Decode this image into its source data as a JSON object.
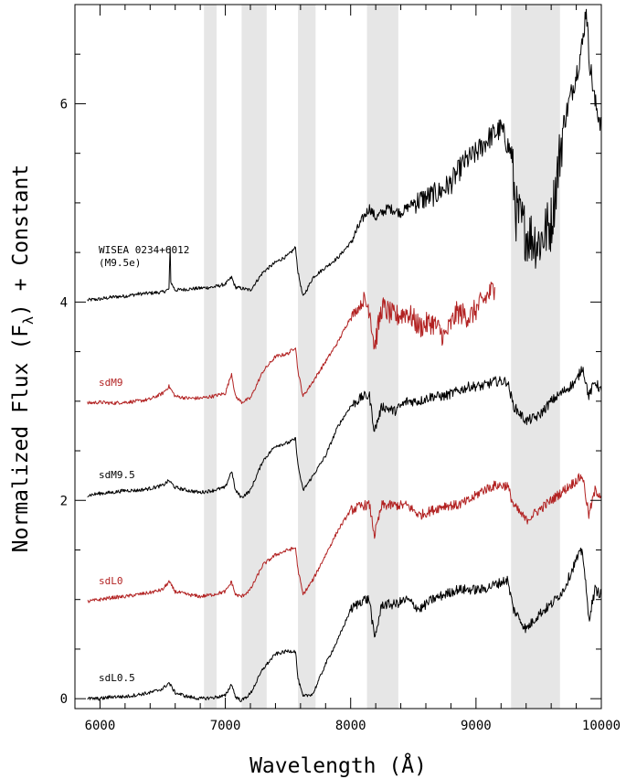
{
  "chart_data": {
    "type": "line",
    "title": "",
    "xlabel": "Wavelength (Å)",
    "ylabel": "Normalized Flux (F",
    "ylabel_subscript": "λ",
    "ylabel_suffix": ") + Constant",
    "xlim": [
      5800,
      10000
    ],
    "ylim": [
      -0.1,
      7.0
    ],
    "x_ticks": [
      6000,
      7000,
      8000,
      9000,
      10000
    ],
    "y_ticks": [
      0,
      2,
      4,
      6
    ],
    "x_tick_labels": [
      "6000",
      "7000",
      "8000",
      "9000",
      "10000"
    ],
    "y_tick_labels": [
      "0",
      "2",
      "4",
      "6"
    ],
    "grid": false,
    "telluric_bands": [
      [
        6830,
        6930
      ],
      [
        7130,
        7330
      ],
      [
        7580,
        7720
      ],
      [
        8130,
        8380
      ],
      [
        9280,
        9670
      ]
    ],
    "colors": {
      "black_series": "#000000",
      "red_series": "#b22222",
      "telluric_band": "#e6e6e6"
    },
    "series": [
      {
        "name": "WISEA 0234+6012",
        "note": "(M9.5e)",
        "color": "#000000",
        "points": [
          [
            5900,
            4.02
          ],
          [
            6000,
            4.03
          ],
          [
            6100,
            4.05
          ],
          [
            6200,
            4.06
          ],
          [
            6300,
            4.08
          ],
          [
            6400,
            4.09
          ],
          [
            6500,
            4.1
          ],
          [
            6550,
            4.13
          ],
          [
            6560,
            4.55
          ],
          [
            6565,
            4.2
          ],
          [
            6600,
            4.12
          ],
          [
            6700,
            4.13
          ],
          [
            6800,
            4.14
          ],
          [
            6900,
            4.15
          ],
          [
            7000,
            4.18
          ],
          [
            7050,
            4.25
          ],
          [
            7080,
            4.15
          ],
          [
            7200,
            4.12
          ],
          [
            7300,
            4.3
          ],
          [
            7400,
            4.4
          ],
          [
            7500,
            4.47
          ],
          [
            7560,
            4.55
          ],
          [
            7580,
            4.3
          ],
          [
            7620,
            4.05
          ],
          [
            7700,
            4.25
          ],
          [
            7800,
            4.35
          ],
          [
            7900,
            4.45
          ],
          [
            8000,
            4.6
          ],
          [
            8100,
            4.85
          ],
          [
            8150,
            4.95
          ],
          [
            8200,
            4.85
          ],
          [
            8300,
            4.95
          ],
          [
            8400,
            4.9
          ],
          [
            8500,
            5.0
          ],
          [
            8600,
            5.05
          ],
          [
            8700,
            5.1
          ],
          [
            8800,
            5.2
          ],
          [
            8900,
            5.4
          ],
          [
            9000,
            5.5
          ],
          [
            9100,
            5.65
          ],
          [
            9200,
            5.75
          ],
          [
            9280,
            5.5
          ],
          [
            9320,
            4.9
          ],
          [
            9400,
            4.7
          ],
          [
            9500,
            4.6
          ],
          [
            9600,
            4.8
          ],
          [
            9670,
            5.5
          ],
          [
            9700,
            5.8
          ],
          [
            9800,
            6.3
          ],
          [
            9850,
            6.6
          ],
          [
            9880,
            7.0
          ],
          [
            9900,
            6.5
          ],
          [
            9950,
            6.0
          ],
          [
            10000,
            5.8
          ]
        ]
      },
      {
        "name": "sdM9",
        "color": "#b22222",
        "points": [
          [
            5900,
            2.98
          ],
          [
            6000,
            2.99
          ],
          [
            6100,
            2.98
          ],
          [
            6200,
            2.99
          ],
          [
            6300,
            3.0
          ],
          [
            6400,
            3.02
          ],
          [
            6500,
            3.08
          ],
          [
            6550,
            3.15
          ],
          [
            6600,
            3.05
          ],
          [
            6700,
            3.03
          ],
          [
            6800,
            3.03
          ],
          [
            6900,
            3.05
          ],
          [
            7000,
            3.08
          ],
          [
            7050,
            3.28
          ],
          [
            7080,
            3.05
          ],
          [
            7130,
            2.99
          ],
          [
            7200,
            3.03
          ],
          [
            7300,
            3.3
          ],
          [
            7400,
            3.45
          ],
          [
            7500,
            3.48
          ],
          [
            7560,
            3.55
          ],
          [
            7580,
            3.3
          ],
          [
            7620,
            3.05
          ],
          [
            7700,
            3.2
          ],
          [
            7800,
            3.4
          ],
          [
            7900,
            3.6
          ],
          [
            8000,
            3.85
          ],
          [
            8100,
            4.0
          ],
          [
            8150,
            3.95
          ],
          [
            8190,
            3.55
          ],
          [
            8250,
            3.95
          ],
          [
            8350,
            3.85
          ],
          [
            8450,
            3.9
          ],
          [
            8550,
            3.75
          ],
          [
            8650,
            3.8
          ],
          [
            8750,
            3.65
          ],
          [
            8850,
            3.9
          ],
          [
            8950,
            3.85
          ],
          [
            9050,
            4.0
          ],
          [
            9150,
            4.15
          ]
        ]
      },
      {
        "name": "sdM9.5",
        "color": "#000000",
        "points": [
          [
            5900,
            2.05
          ],
          [
            6000,
            2.07
          ],
          [
            6100,
            2.08
          ],
          [
            6200,
            2.1
          ],
          [
            6300,
            2.1
          ],
          [
            6400,
            2.12
          ],
          [
            6500,
            2.15
          ],
          [
            6550,
            2.2
          ],
          [
            6600,
            2.13
          ],
          [
            6700,
            2.1
          ],
          [
            6800,
            2.08
          ],
          [
            6900,
            2.1
          ],
          [
            7000,
            2.13
          ],
          [
            7050,
            2.3
          ],
          [
            7080,
            2.1
          ],
          [
            7130,
            2.03
          ],
          [
            7200,
            2.1
          ],
          [
            7300,
            2.4
          ],
          [
            7400,
            2.55
          ],
          [
            7500,
            2.58
          ],
          [
            7560,
            2.62
          ],
          [
            7580,
            2.35
          ],
          [
            7620,
            2.1
          ],
          [
            7700,
            2.25
          ],
          [
            7800,
            2.45
          ],
          [
            7900,
            2.75
          ],
          [
            8000,
            2.95
          ],
          [
            8100,
            3.05
          ],
          [
            8150,
            3.05
          ],
          [
            8190,
            2.7
          ],
          [
            8250,
            2.95
          ],
          [
            8350,
            2.9
          ],
          [
            8450,
            3.0
          ],
          [
            8550,
            3.0
          ],
          [
            8650,
            3.05
          ],
          [
            8750,
            3.05
          ],
          [
            8850,
            3.1
          ],
          [
            8950,
            3.15
          ],
          [
            9050,
            3.15
          ],
          [
            9150,
            3.2
          ],
          [
            9250,
            3.2
          ],
          [
            9300,
            2.95
          ],
          [
            9400,
            2.8
          ],
          [
            9500,
            2.85
          ],
          [
            9600,
            3.0
          ],
          [
            9700,
            3.1
          ],
          [
            9800,
            3.2
          ],
          [
            9850,
            3.35
          ],
          [
            9900,
            3.05
          ],
          [
            9950,
            3.2
          ],
          [
            10000,
            3.1
          ]
        ]
      },
      {
        "name": "sdL0",
        "color": "#b22222",
        "points": [
          [
            5900,
            0.98
          ],
          [
            6000,
            1.0
          ],
          [
            6100,
            1.02
          ],
          [
            6200,
            1.03
          ],
          [
            6300,
            1.05
          ],
          [
            6400,
            1.07
          ],
          [
            6500,
            1.1
          ],
          [
            6550,
            1.18
          ],
          [
            6600,
            1.08
          ],
          [
            6700,
            1.05
          ],
          [
            6800,
            1.03
          ],
          [
            6900,
            1.05
          ],
          [
            7000,
            1.08
          ],
          [
            7050,
            1.18
          ],
          [
            7080,
            1.05
          ],
          [
            7130,
            1.03
          ],
          [
            7200,
            1.1
          ],
          [
            7300,
            1.35
          ],
          [
            7400,
            1.45
          ],
          [
            7500,
            1.5
          ],
          [
            7560,
            1.52
          ],
          [
            7580,
            1.3
          ],
          [
            7620,
            1.05
          ],
          [
            7700,
            1.2
          ],
          [
            7800,
            1.45
          ],
          [
            7900,
            1.7
          ],
          [
            8000,
            1.9
          ],
          [
            8100,
            1.95
          ],
          [
            8150,
            1.95
          ],
          [
            8190,
            1.65
          ],
          [
            8250,
            1.95
          ],
          [
            8350,
            1.95
          ],
          [
            8450,
            1.95
          ],
          [
            8550,
            1.85
          ],
          [
            8650,
            1.9
          ],
          [
            8750,
            1.95
          ],
          [
            8850,
            1.95
          ],
          [
            8950,
            2.0
          ],
          [
            9050,
            2.1
          ],
          [
            9150,
            2.15
          ],
          [
            9250,
            2.15
          ],
          [
            9300,
            1.95
          ],
          [
            9400,
            1.8
          ],
          [
            9500,
            1.9
          ],
          [
            9600,
            2.0
          ],
          [
            9700,
            2.1
          ],
          [
            9800,
            2.2
          ],
          [
            9850,
            2.25
          ],
          [
            9900,
            1.85
          ],
          [
            9950,
            2.1
          ],
          [
            10000,
            2.05
          ]
        ]
      },
      {
        "name": "sdL0.5",
        "color": "#000000",
        "points": [
          [
            5900,
            0.0
          ],
          [
            6000,
            0.0
          ],
          [
            6100,
            0.02
          ],
          [
            6200,
            0.02
          ],
          [
            6300,
            0.04
          ],
          [
            6400,
            0.06
          ],
          [
            6500,
            0.1
          ],
          [
            6550,
            0.16
          ],
          [
            6600,
            0.06
          ],
          [
            6700,
            0.02
          ],
          [
            6800,
            0.0
          ],
          [
            6900,
            0.01
          ],
          [
            7000,
            0.03
          ],
          [
            7050,
            0.15
          ],
          [
            7080,
            0.02
          ],
          [
            7130,
            -0.02
          ],
          [
            7200,
            0.05
          ],
          [
            7300,
            0.3
          ],
          [
            7400,
            0.45
          ],
          [
            7500,
            0.48
          ],
          [
            7560,
            0.48
          ],
          [
            7580,
            0.2
          ],
          [
            7620,
            0.02
          ],
          [
            7700,
            0.05
          ],
          [
            7800,
            0.35
          ],
          [
            7900,
            0.6
          ],
          [
            8000,
            0.9
          ],
          [
            8100,
            1.0
          ],
          [
            8150,
            1.0
          ],
          [
            8190,
            0.6
          ],
          [
            8250,
            0.95
          ],
          [
            8350,
            0.95
          ],
          [
            8450,
            1.0
          ],
          [
            8550,
            0.9
          ],
          [
            8650,
            1.0
          ],
          [
            8750,
            1.05
          ],
          [
            8850,
            1.1
          ],
          [
            8950,
            1.1
          ],
          [
            9050,
            1.1
          ],
          [
            9150,
            1.15
          ],
          [
            9250,
            1.2
          ],
          [
            9300,
            0.9
          ],
          [
            9400,
            0.7
          ],
          [
            9500,
            0.85
          ],
          [
            9600,
            0.95
          ],
          [
            9700,
            1.1
          ],
          [
            9800,
            1.4
          ],
          [
            9850,
            1.5
          ],
          [
            9900,
            0.8
          ],
          [
            9950,
            1.1
          ],
          [
            10000,
            1.05
          ]
        ]
      }
    ]
  }
}
